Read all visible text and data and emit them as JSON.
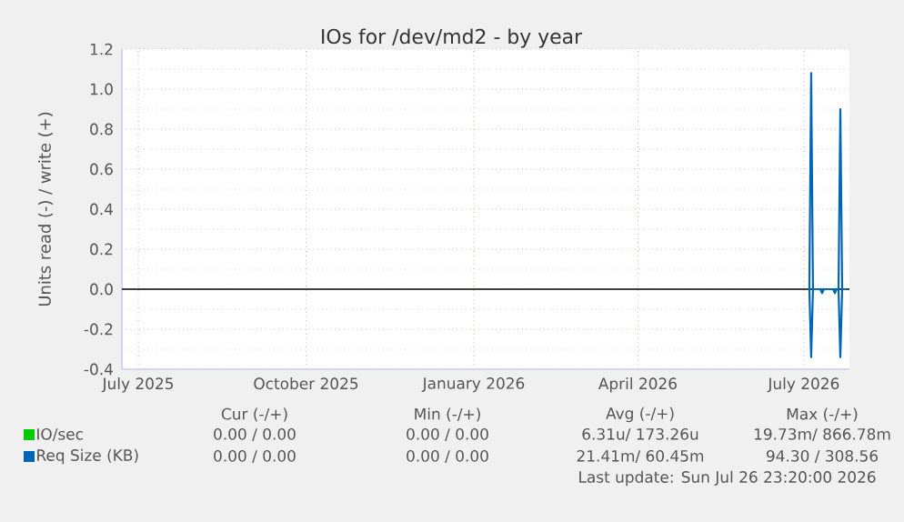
{
  "chart_data": {
    "type": "line",
    "title": "IOs for /dev/md2 - by year",
    "ylabel": "Units read (-) / write (+)",
    "xlim": [
      "2025-06-22",
      "2026-07-26"
    ],
    "xticks": [
      {
        "value": "2025-07-01",
        "label": "July 2025"
      },
      {
        "value": "2025-10-01",
        "label": "October 2025"
      },
      {
        "value": "2026-01-01",
        "label": "January 2026"
      },
      {
        "value": "2026-04-01",
        "label": "April 2026"
      },
      {
        "value": "2026-07-01",
        "label": "July 2026"
      }
    ],
    "ylim": [
      -0.4,
      1.2
    ],
    "yticks": [
      -0.4,
      -0.2,
      {
        "value": 0,
        "label": "0.0"
      },
      0.2,
      0.4,
      0.6,
      0.8,
      {
        "value": 1,
        "label": "1.0"
      },
      1.2
    ],
    "grid": true,
    "legend": "bottom",
    "marker": "none",
    "ref_lines": [
      {
        "axis": "y",
        "value": 0,
        "color": "#000000"
      }
    ],
    "series": [
      {
        "name": "IO/sec",
        "color": "#00cc00"
      },
      {
        "name": "Req Size (KB)",
        "color": "#0066b3",
        "x": [
          "2026-07-03",
          "2026-07-04",
          "2026-07-05",
          "2026-07-06",
          "2026-07-20",
          "2026-07-21",
          "2026-07-22",
          "2026-07-25"
        ],
        "values": [
          0,
          0,
          1.08,
          0,
          0,
          0.9,
          0,
          0
        ]
      },
      {
        "color": "#0066b3",
        "x": [
          "2026-07-03",
          "2026-07-04",
          "2026-07-05",
          "2026-07-06",
          "2026-07-10",
          "2026-07-11",
          "2026-07-12",
          "2026-07-17",
          "2026-07-18",
          "2026-07-19",
          "2026-07-20",
          "2026-07-21",
          "2026-07-22",
          "2026-07-25"
        ],
        "values": [
          0,
          0,
          -0.34,
          0,
          0,
          -0.02,
          0,
          0,
          -0.02,
          0,
          0,
          -0.34,
          0,
          0
        ]
      }
    ],
    "annotations": [
      "Cur (-/+)",
      "Min (-/+)",
      "Avg (-/+)",
      "Max (-/+)",
      "0.00 / 0.00",
      "0.00 / 0.00",
      "6.31u/ 173.26u",
      "19.73m/ 866.78m",
      "0.00 / 0.00",
      "0.00 / 0.00",
      "21.41m/ 60.45m",
      "94.30 / 308.56",
      "Last update: Sun Jul 26 23:20:00 2026"
    ]
  }
}
